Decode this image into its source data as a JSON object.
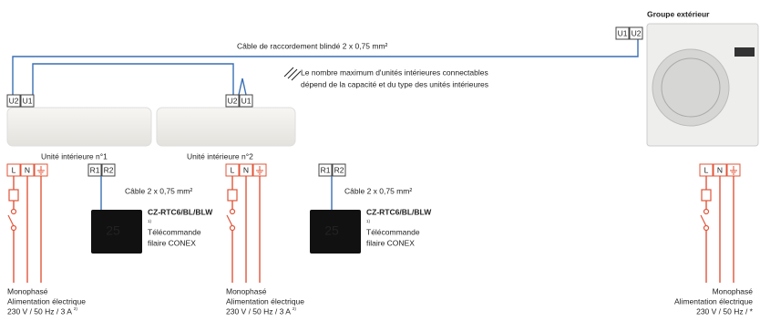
{
  "outdoor": {
    "title": "Groupe extérieur",
    "terminals": [
      "U1",
      "U2"
    ],
    "supply_terminals": [
      "L",
      "N"
    ],
    "power": {
      "phase": "Monophasé",
      "label": "Alimentation électrique",
      "spec": "230 V / 50 Hz / *"
    }
  },
  "cable": "Câble de raccordement blindé 2 x 0,75 mm²",
  "note": [
    "Le nombre maximum d'unités intérieures connectables",
    "dépend de la capacité et du type des unités intérieures"
  ],
  "indoor_units": [
    {
      "name": "Unité intérieure n°1",
      "terminals": [
        "U2",
        "U1"
      ],
      "supply_terminals": [
        "L",
        "N"
      ],
      "remote_terminals": [
        "R1",
        "R2"
      ],
      "remote_cable": "Câble 2 x 0,75 mm²",
      "remote": {
        "model": "CZ-RTC6/BL/BLW",
        "note_ref": "1)",
        "label": [
          "Télécommande",
          "filaire CONEX"
        ],
        "display": "25"
      },
      "power": {
        "phase": "Monophasé",
        "label": "Alimentation électrique",
        "spec": "230 V / 50 Hz / 3 A",
        "note_ref": "2)"
      }
    },
    {
      "name": "Unité intérieure n°2",
      "terminals": [
        "U2",
        "U1"
      ],
      "supply_terminals": [
        "L",
        "N"
      ],
      "remote_terminals": [
        "R1",
        "R2"
      ],
      "remote_cable": "Câble 2 x 0,75 mm²",
      "remote": {
        "model": "CZ-RTC6/BL/BLW",
        "note_ref": "1)",
        "label": [
          "Télécommande",
          "filaire CONEX"
        ],
        "display": "25"
      },
      "power": {
        "phase": "Monophasé",
        "label": "Alimentation électrique",
        "spec": "230 V / 50 Hz / 3 A",
        "note_ref": "2)"
      }
    }
  ]
}
